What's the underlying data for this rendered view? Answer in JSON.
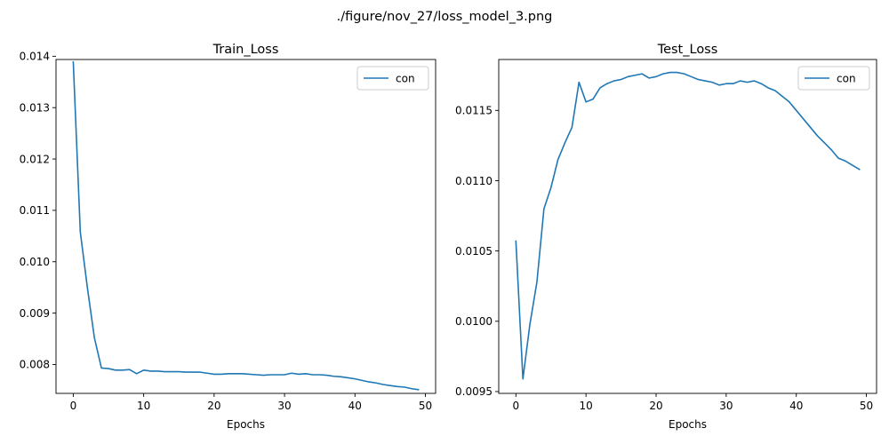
{
  "figure": {
    "suptitle": "./figure/nov_27/loss_model_3.png"
  },
  "chart_data": [
    {
      "type": "line",
      "title": "Train_Loss",
      "xlabel": "Epochs",
      "ylabel": "",
      "xlim": [
        -2.45,
        51.45
      ],
      "ylim": [
        0.007437,
        0.013937
      ],
      "xticks": [
        0,
        10,
        20,
        30,
        40,
        50
      ],
      "xtick_labels": [
        "0",
        "10",
        "20",
        "30",
        "40",
        "50"
      ],
      "yticks": [
        0.008,
        0.009,
        0.01,
        0.011,
        0.012,
        0.013,
        0.014
      ],
      "ytick_labels": [
        "0.008",
        "0.009",
        "0.010",
        "0.011",
        "0.012",
        "0.013",
        "0.014"
      ],
      "grid": false,
      "legend_position": "top-right",
      "series": [
        {
          "name": "con",
          "color": "#1f77b4",
          "x": [
            0,
            1,
            2,
            3,
            4,
            5,
            6,
            7,
            8,
            9,
            10,
            11,
            12,
            13,
            14,
            15,
            16,
            17,
            18,
            19,
            20,
            21,
            22,
            23,
            24,
            25,
            26,
            27,
            28,
            29,
            30,
            31,
            32,
            33,
            34,
            35,
            36,
            37,
            38,
            39,
            40,
            41,
            42,
            43,
            44,
            45,
            46,
            47,
            48,
            49
          ],
          "values": [
            0.01389,
            0.01058,
            0.0095,
            0.00852,
            0.00793,
            0.00792,
            0.00789,
            0.00789,
            0.0079,
            0.00782,
            0.00789,
            0.00787,
            0.00787,
            0.00786,
            0.00786,
            0.00786,
            0.00785,
            0.00785,
            0.00785,
            0.00783,
            0.00781,
            0.00781,
            0.00782,
            0.00782,
            0.00782,
            0.00781,
            0.0078,
            0.00779,
            0.0078,
            0.0078,
            0.0078,
            0.00783,
            0.00781,
            0.00782,
            0.0078,
            0.0078,
            0.00779,
            0.00777,
            0.00776,
            0.00774,
            0.00772,
            0.00769,
            0.00766,
            0.00764,
            0.00761,
            0.00759,
            0.00757,
            0.00756,
            0.00753,
            0.00751
          ]
        }
      ]
    },
    {
      "type": "line",
      "title": "Test_Loss",
      "xlabel": "Epochs",
      "ylabel": "",
      "xlim": [
        -2.45,
        51.45
      ],
      "ylim": [
        0.009487,
        0.011862
      ],
      "xticks": [
        0,
        10,
        20,
        30,
        40,
        50
      ],
      "xtick_labels": [
        "0",
        "10",
        "20",
        "30",
        "40",
        "50"
      ],
      "yticks": [
        0.0095,
        0.01,
        0.0105,
        0.011,
        0.0115
      ],
      "ytick_labels": [
        "0.0095",
        "0.0100",
        "0.0105",
        "0.0110",
        "0.0115"
      ],
      "grid": false,
      "legend_position": "top-right",
      "series": [
        {
          "name": "con",
          "color": "#1f77b4",
          "x": [
            0,
            1,
            2,
            3,
            4,
            5,
            6,
            7,
            8,
            9,
            10,
            11,
            12,
            13,
            14,
            15,
            16,
            17,
            18,
            19,
            20,
            21,
            22,
            23,
            24,
            25,
            26,
            27,
            28,
            29,
            30,
            31,
            32,
            33,
            34,
            35,
            36,
            37,
            38,
            39,
            40,
            41,
            42,
            43,
            44,
            45,
            46,
            47,
            48,
            49
          ],
          "values": [
            0.01057,
            0.00959,
            0.00998,
            0.01028,
            0.0108,
            0.01095,
            0.01115,
            0.01127,
            0.01138,
            0.0117,
            0.01156,
            0.01158,
            0.01166,
            0.01169,
            0.01171,
            0.01172,
            0.01174,
            0.01175,
            0.01176,
            0.01173,
            0.01174,
            0.01176,
            0.01177,
            0.01177,
            0.01176,
            0.01174,
            0.01172,
            0.01171,
            0.0117,
            0.01168,
            0.01169,
            0.01169,
            0.01171,
            0.0117,
            0.01171,
            0.01169,
            0.01166,
            0.01164,
            0.0116,
            0.01156,
            0.0115,
            0.01144,
            0.01138,
            0.01132,
            0.01127,
            0.01122,
            0.01116,
            0.01114,
            0.01111,
            0.01108
          ]
        }
      ]
    }
  ]
}
